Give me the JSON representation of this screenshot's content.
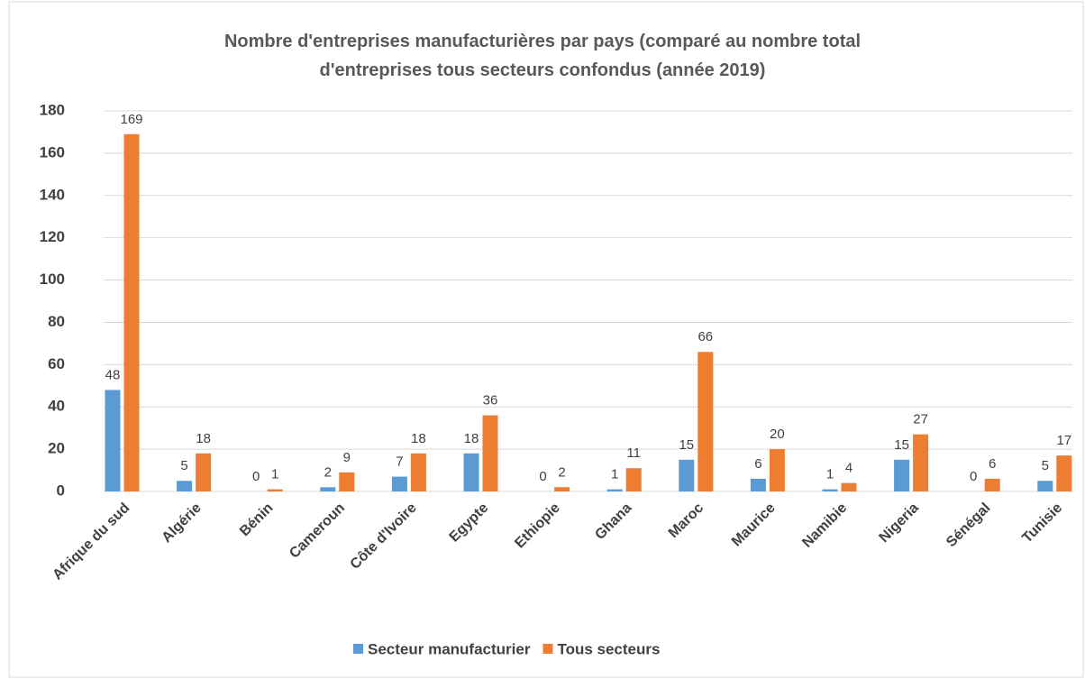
{
  "chart_data": {
    "type": "bar",
    "title": "Nombre d'entreprises manufacturières par pays (comparé au nombre total d'entreprises tous secteurs confondus (année 2019)",
    "categories": [
      "Afrique du sud",
      "Algérie",
      "Bénin",
      "Cameroun",
      "Côte d'Ivoire",
      "Egypte",
      "Ethiopie",
      "Ghana",
      "Maroc",
      "Maurice",
      "Namibie",
      "Nigeria",
      "Sénégal",
      "Tunisie"
    ],
    "series": [
      {
        "name": "Secteur manufacturier",
        "color": "#5b9bd5",
        "values": [
          48,
          5,
          0,
          2,
          7,
          18,
          0,
          1,
          15,
          6,
          1,
          15,
          0,
          5
        ]
      },
      {
        "name": "Tous secteurs",
        "color": "#ed7d31",
        "values": [
          169,
          18,
          1,
          9,
          18,
          36,
          2,
          11,
          66,
          20,
          4,
          27,
          6,
          17
        ]
      }
    ],
    "ylim": [
      0,
      180
    ],
    "yticks": [
      0,
      20,
      40,
      60,
      80,
      100,
      120,
      140,
      160,
      180
    ],
    "grid": true,
    "legend": "bottom"
  }
}
